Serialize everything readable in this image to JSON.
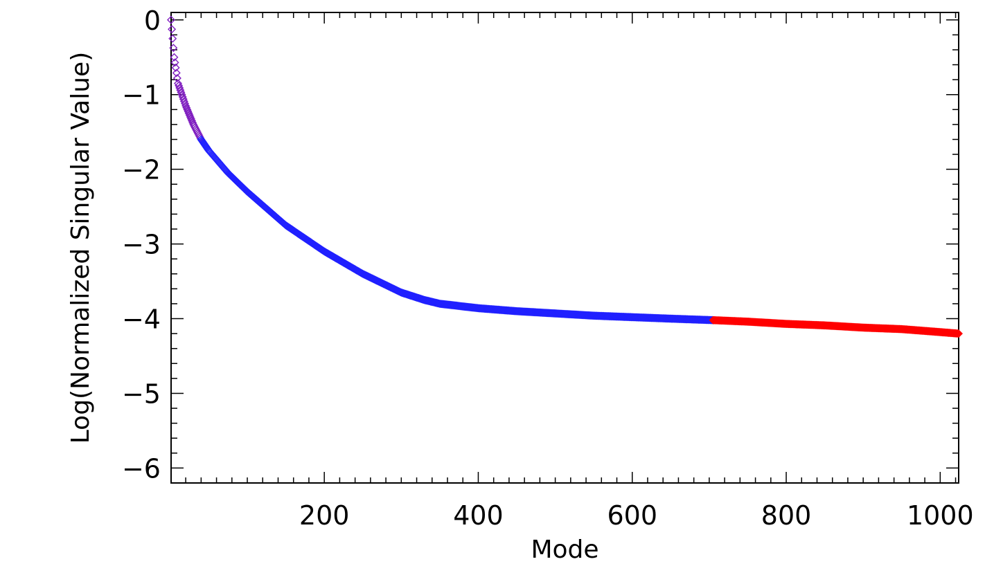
{
  "chart_data": {
    "type": "scatter",
    "title": "",
    "xlabel": "Mode",
    "ylabel": "Log(Normalized Singular Value)",
    "xlim": [
      1,
      1024
    ],
    "ylim": [
      -6.2,
      0.1
    ],
    "x_ticks": [
      200,
      400,
      600,
      800,
      1000
    ],
    "x_tick_labels": [
      "200",
      "400",
      "600",
      "800",
      "1000"
    ],
    "y_ticks": [
      0,
      -1,
      -2,
      -3,
      -4,
      -5,
      -6
    ],
    "y_tick_labels": [
      "0",
      "−1",
      "−2",
      "−3",
      "−4",
      "−5",
      "−6"
    ],
    "grid": false,
    "marker": "diamond",
    "color_gradient_note_colors": {
      "early_modes": "#8020c0",
      "middle_modes": "#2020ff",
      "late_modes": "#ff0000"
    },
    "series": [
      {
        "color": "#2020ff",
        "x": [
          1,
          5,
          10,
          20,
          30,
          40,
          50,
          75,
          100,
          150,
          200,
          250,
          300,
          330,
          350,
          400,
          450,
          500,
          550,
          600,
          650,
          705
        ],
        "y": [
          0.0,
          -0.5,
          -0.85,
          -1.15,
          -1.4,
          -1.6,
          -1.75,
          -2.05,
          -2.3,
          -2.75,
          -3.1,
          -3.4,
          -3.65,
          -3.75,
          -3.8,
          -3.86,
          -3.9,
          -3.93,
          -3.96,
          -3.98,
          -4.0,
          -4.02
        ]
      },
      {
        "color": "#ff0000",
        "x": [
          705,
          750,
          800,
          850,
          900,
          950,
          1000,
          1024
        ],
        "y": [
          -4.02,
          -4.04,
          -4.07,
          -4.09,
          -4.12,
          -4.14,
          -4.18,
          -4.2
        ]
      }
    ]
  }
}
